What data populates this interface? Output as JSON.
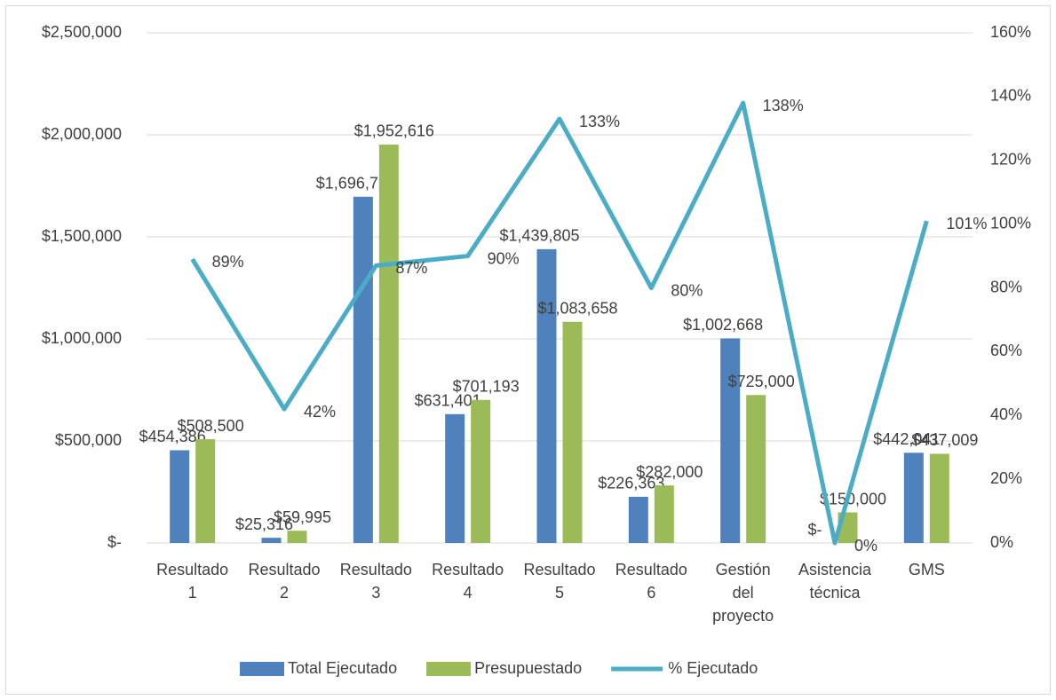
{
  "chart_data": {
    "type": "bar",
    "categories": [
      "Resultado 1",
      "Resultado 2",
      "Resultado 3",
      "Resultado 4",
      "Resultado 5",
      "Resultado 6",
      "Gestión del proyecto",
      "Asistencia técnica",
      "GMS"
    ],
    "series": [
      {
        "name": "Total Ejecutado",
        "color": "#4f81bd",
        "values": [
          454386,
          25316,
          1696721,
          631401,
          1439805,
          226363,
          1002668,
          0,
          442041
        ],
        "value_labels": [
          "$454,386",
          "$25,316",
          "$1,696,721",
          "$631,401",
          "$1,439,805",
          "$226,363",
          "$1,002,668",
          "$-",
          "$442,041"
        ]
      },
      {
        "name": "Presupuestado",
        "color": "#9bbb59",
        "values": [
          508500,
          59995,
          1952616,
          701193,
          1083658,
          282000,
          725000,
          150000,
          437009
        ],
        "value_labels": [
          "$508,500",
          "$59,995",
          "$1,952,616",
          "$701,193",
          "$1,083,658",
          "$282,000",
          "$725,000",
          "$150,000",
          "$437,009"
        ]
      },
      {
        "name": "% Ejecutado",
        "color": "#4bacc6",
        "type": "line",
        "axis": "y2",
        "values": [
          89,
          42,
          87,
          90,
          133,
          80,
          138,
          0,
          101
        ],
        "value_labels": [
          "89%",
          "42%",
          "87%",
          "90%",
          "133%",
          "80%",
          "138%",
          "0%",
          "101%"
        ]
      }
    ],
    "ylim": [
      0,
      2500000
    ],
    "yticks": [
      {
        "value": 0,
        "label": "$-"
      },
      {
        "value": 500000,
        "label": "$500,000"
      },
      {
        "value": 1000000,
        "label": "$1,000,000"
      },
      {
        "value": 1500000,
        "label": "$1,500,000"
      },
      {
        "value": 2000000,
        "label": "$2,000,000"
      },
      {
        "value": 2500000,
        "label": "$2,500,000"
      }
    ],
    "y2lim": [
      0,
      160
    ],
    "y2ticks": [
      {
        "value": 0,
        "label": "0%"
      },
      {
        "value": 20,
        "label": "20%"
      },
      {
        "value": 40,
        "label": "40%"
      },
      {
        "value": 60,
        "label": "60%"
      },
      {
        "value": 80,
        "label": "80%"
      },
      {
        "value": 100,
        "label": "100%"
      },
      {
        "value": 120,
        "label": "120%"
      },
      {
        "value": 140,
        "label": "140%"
      },
      {
        "value": 160,
        "label": "160%"
      }
    ],
    "grid": true,
    "legend": "bottom"
  }
}
